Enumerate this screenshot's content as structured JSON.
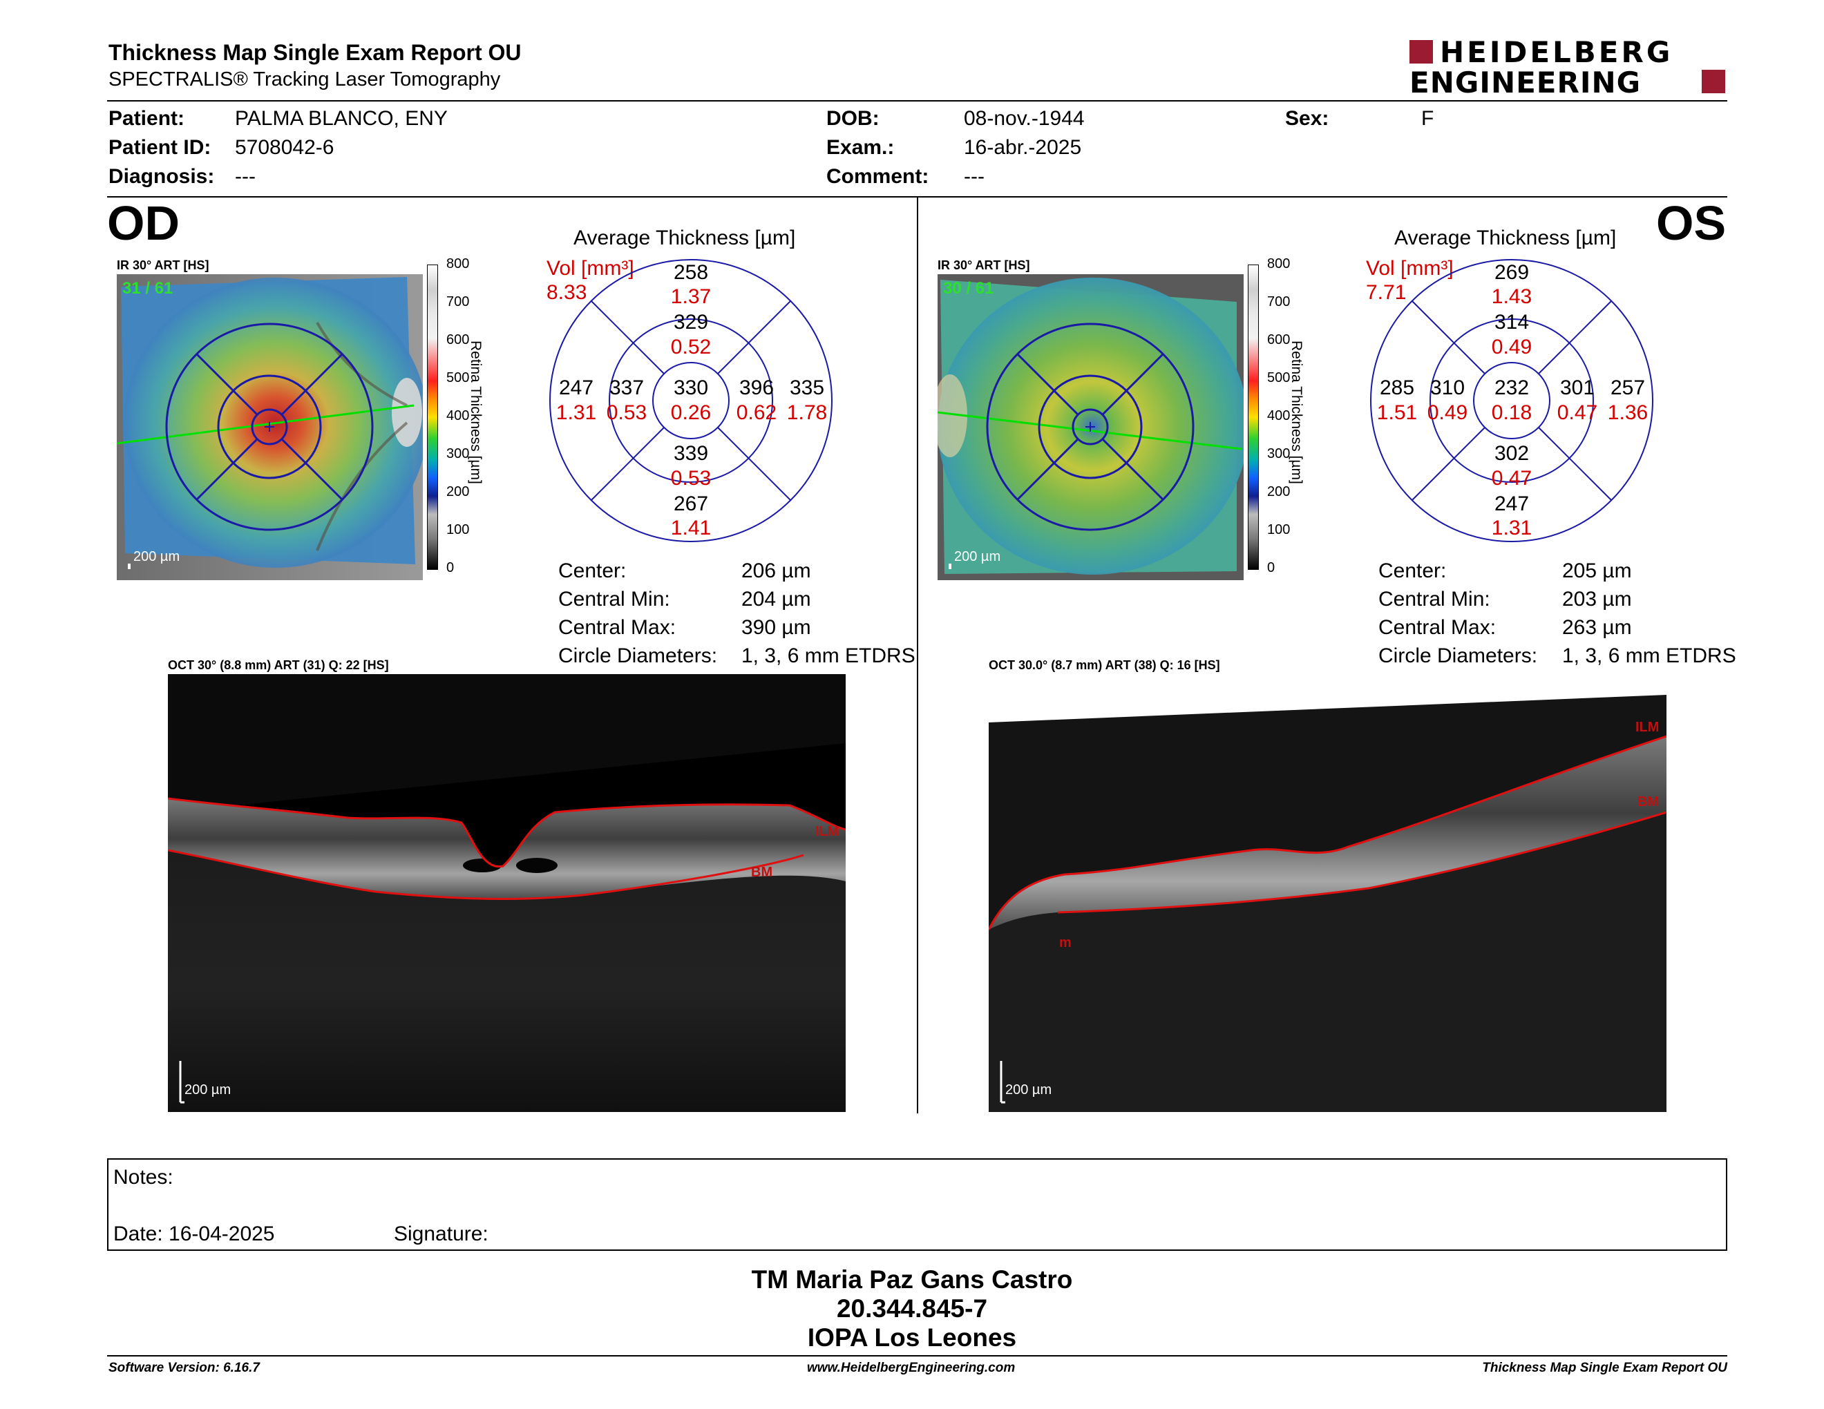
{
  "header": {
    "title": "Thickness Map Single Exam Report OU",
    "subtitle": "SPECTRALIS® Tracking Laser Tomography",
    "logo_line1": "HEIDELBERG",
    "logo_line2": "ENGINEERING",
    "brand_color": "#9b1b30"
  },
  "patient": {
    "patient_label": "Patient:",
    "patient_value": "PALMA BLANCO, ENY",
    "id_label": "Patient ID:",
    "id_value": "5708042-6",
    "diagnosis_label": "Diagnosis:",
    "diagnosis_value": "---",
    "dob_label": "DOB:",
    "dob_value": "08-nov.-1944",
    "exam_label": "Exam.:",
    "exam_value": "16-abr.-2025",
    "comment_label": "Comment:",
    "comment_value": "---",
    "sex_label": "Sex:",
    "sex_value": "F"
  },
  "scale": {
    "ticks": [
      "800",
      "700",
      "600",
      "500",
      "400",
      "300",
      "200",
      "100",
      "0"
    ],
    "label": "Retina Thickness [µm]"
  },
  "od": {
    "eye": "OD",
    "ir_label": "IR 30° ART [HS]",
    "ir_counter": "31 / 61",
    "ir_scale": "200 µm",
    "avg_title": "Average Thickness [µm]",
    "vol_label": "Vol [mm³]",
    "vol_value": "8.33",
    "sectors": {
      "outer_top": "258",
      "outer_top_vol": "1.37",
      "inner_top": "329",
      "inner_top_vol": "0.52",
      "outer_left": "247",
      "outer_left_vol": "1.31",
      "inner_left": "337",
      "inner_left_vol": "0.53",
      "center": "330",
      "center_vol": "0.26",
      "inner_right": "396",
      "inner_right_vol": "0.62",
      "outer_right": "335",
      "outer_right_vol": "1.78",
      "inner_bottom": "339",
      "inner_bottom_vol": "0.53",
      "outer_bottom": "267",
      "outer_bottom_vol": "1.41"
    },
    "stats": {
      "center_label": "Center:",
      "center_value": "206 µm",
      "min_label": "Central Min:",
      "min_value": "204 µm",
      "max_label": "Central Max:",
      "max_value": "390 µm",
      "diam_label": "Circle Diameters:",
      "diam_value": "1, 3, 6 mm ETDRS"
    },
    "oct_label": "OCT 30° (8.8 mm) ART (31) Q: 22 [HS]",
    "oct_scale": "200 µm",
    "oct_ilm": "ILM",
    "oct_bm": "BM"
  },
  "os": {
    "eye": "OS",
    "ir_label": "IR 30° ART [HS]",
    "ir_counter": "30 / 61",
    "ir_scale": "200 µm",
    "avg_title": "Average Thickness [µm]",
    "vol_label": "Vol [mm³]",
    "vol_value": "7.71",
    "sectors": {
      "outer_top": "269",
      "outer_top_vol": "1.43",
      "inner_top": "314",
      "inner_top_vol": "0.49",
      "outer_left": "285",
      "outer_left_vol": "1.51",
      "inner_left": "310",
      "inner_left_vol": "0.49",
      "center": "232",
      "center_vol": "0.18",
      "inner_right": "301",
      "inner_right_vol": "0.47",
      "outer_right": "257",
      "outer_right_vol": "1.36",
      "inner_bottom": "302",
      "inner_bottom_vol": "0.47",
      "outer_bottom": "247",
      "outer_bottom_vol": "1.31"
    },
    "stats": {
      "center_label": "Center:",
      "center_value": "205 µm",
      "min_label": "Central Min:",
      "min_value": "203 µm",
      "max_label": "Central Max:",
      "max_value": "263 µm",
      "diam_label": "Circle Diameters:",
      "diam_value": "1, 3, 6 mm ETDRS"
    },
    "oct_label": "OCT 30.0° (8.7 mm) ART (38) Q: 16 [HS]",
    "oct_scale": "200 µm",
    "oct_ilm": "ILM",
    "oct_bm": "BM",
    "oct_m": "m"
  },
  "notes": {
    "notes_label": "Notes:",
    "date_label": "Date: 16-04-2025",
    "signature_label": "Signature:"
  },
  "signature_block": {
    "name": "TM Maria Paz Gans Castro",
    "rut": "20.344.845-7",
    "institution": "IOPA Los Leones"
  },
  "footer": {
    "software": "Software Version: 6.16.7",
    "website": "www.HeidelbergEngineering.com",
    "report": "Thickness Map Single Exam Report OU"
  }
}
